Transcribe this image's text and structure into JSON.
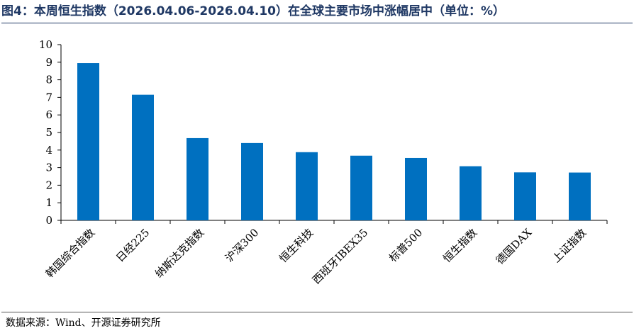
{
  "title": "图4：本周恒生指数（2026.04.06-2026.04.10）在全球主要市场中涨幅居中（单位：%）",
  "source": "数据来源：Wind、开源证券研究所",
  "colors": {
    "bar": "#0070c0",
    "title": "#1f3864",
    "axis": "#000000"
  },
  "chart_data": {
    "type": "bar",
    "title": "",
    "xlabel": "",
    "ylabel": "",
    "categories": [
      "韩国综合指数",
      "日经225",
      "纳斯达克指数",
      "沪深300",
      "恒生科技",
      "西班牙IBEX35",
      "标普500",
      "恒生指数",
      "德国DAX",
      "上证指数"
    ],
    "values": [
      8.95,
      7.15,
      4.68,
      4.4,
      3.88,
      3.68,
      3.55,
      3.08,
      2.73,
      2.72
    ],
    "ylim": [
      0,
      10
    ],
    "yticks": [
      0,
      1,
      2,
      3,
      4,
      5,
      6,
      7,
      8,
      9,
      10
    ],
    "grid": false,
    "legend": "none"
  }
}
